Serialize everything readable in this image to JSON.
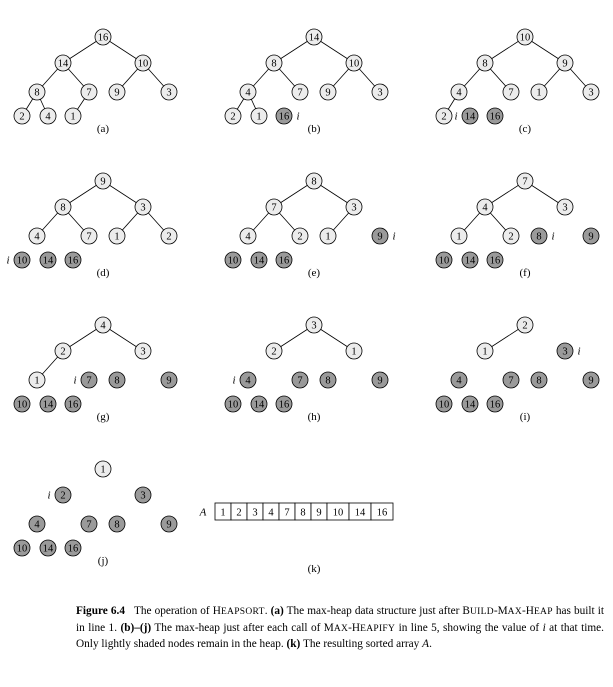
{
  "panels": [
    {
      "label": "(a)",
      "i_label": "",
      "i_node": null,
      "nodes": [
        16,
        14,
        10,
        8,
        7,
        9,
        3,
        2,
        4,
        1
      ],
      "remaining": 10
    },
    {
      "label": "(b)",
      "i_label": "i",
      "i_node": 9,
      "nodes": [
        14,
        8,
        10,
        4,
        7,
        9,
        3,
        2,
        1,
        16
      ],
      "remaining": 9
    },
    {
      "label": "(c)",
      "i_label": "i",
      "i_node": 8,
      "nodes": [
        10,
        8,
        9,
        4,
        7,
        1,
        3,
        2,
        14,
        16
      ],
      "remaining": 8
    },
    {
      "label": "(d)",
      "i_label": "i",
      "i_node": 7,
      "nodes": [
        9,
        8,
        3,
        4,
        7,
        1,
        2,
        10,
        14,
        16
      ],
      "remaining": 7
    },
    {
      "label": "(e)",
      "i_label": "i",
      "i_node": 6,
      "nodes": [
        8,
        7,
        3,
        4,
        2,
        1,
        9,
        10,
        14,
        16
      ],
      "remaining": 6
    },
    {
      "label": "(f)",
      "i_label": "i",
      "i_node": 5,
      "nodes": [
        7,
        4,
        3,
        1,
        2,
        8,
        9,
        10,
        14,
        16
      ],
      "remaining": 5
    },
    {
      "label": "(g)",
      "i_label": "i",
      "i_node": 4,
      "nodes": [
        4,
        2,
        3,
        1,
        7,
        8,
        9,
        10,
        14,
        16
      ],
      "remaining": 4
    },
    {
      "label": "(h)",
      "i_label": "i",
      "i_node": 3,
      "nodes": [
        3,
        2,
        1,
        4,
        7,
        8,
        9,
        10,
        14,
        16
      ],
      "remaining": 3
    },
    {
      "label": "(i)",
      "i_label": "i",
      "i_node": 2,
      "nodes": [
        2,
        1,
        3,
        4,
        7,
        8,
        9,
        10,
        14,
        16
      ],
      "remaining": 2
    },
    {
      "label": "(j)",
      "i_label": "i",
      "i_node": 1,
      "nodes": [
        1,
        2,
        3,
        4,
        7,
        8,
        9,
        10,
        14,
        16
      ],
      "remaining": 1
    }
  ],
  "array_k": {
    "name": "A",
    "values": [
      1,
      2,
      3,
      4,
      7,
      8,
      9,
      10,
      14,
      16
    ],
    "label": "(k)"
  },
  "caption": {
    "figure": "Figure 6.4",
    "t1": "The operation of ",
    "heapsort_first": "H",
    "heapsort_rest": "EAPSORT",
    "t2": ". ",
    "a_label": "(a)",
    "t3": " The max-heap data structure just after ",
    "build_first": "B",
    "build_rest1": "UILD",
    "build_dash": "-M",
    "build_rest2": "AX",
    "build_dash2": "-",
    "build_first3": "H",
    "build_rest3": "EAP",
    "t4": " has built it in line 1. ",
    "bj_label": "(b)–(j)",
    "t5": " The max-heap just after each call of ",
    "mh_first": "M",
    "mh_rest1": "AX",
    "mh_dash": "-H",
    "mh_rest2": "EAPIFY",
    "t6": " in line 5, showing the value of ",
    "i_var": "i",
    "t7": " at that time. Only lightly shaded nodes remain in the heap. ",
    "k_label": "(k)",
    "t8": " The resulting sorted array ",
    "a_var": "A",
    "t9": "."
  },
  "colors": {
    "light_node": "#ececec",
    "dark_node": "#9a9a9a",
    "stroke": "#000000"
  }
}
